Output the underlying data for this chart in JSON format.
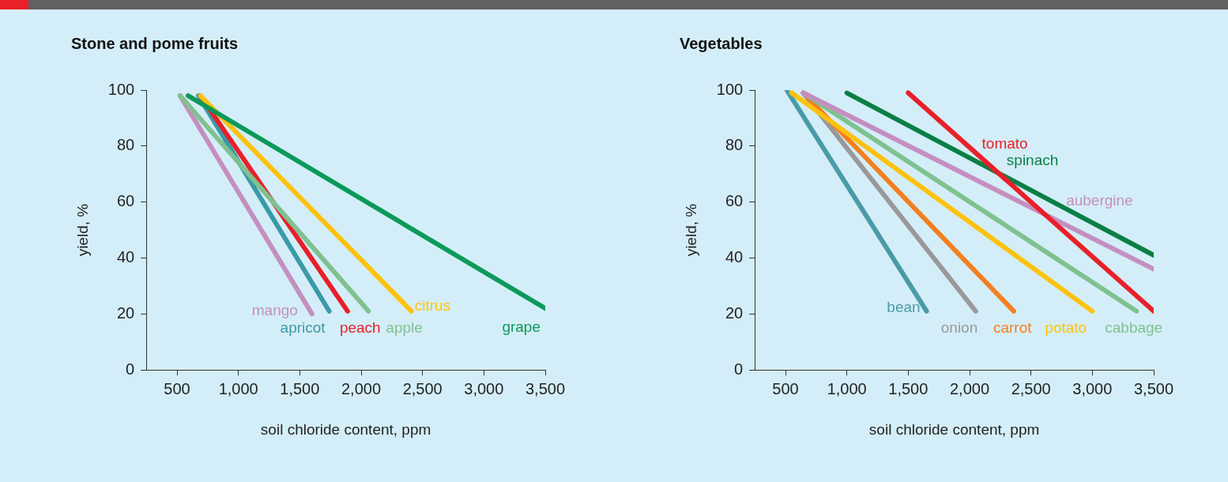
{
  "chart_data": [
    {
      "type": "line",
      "title": "Stone and pome fruits",
      "xlabel": "soil chloride content, ppm",
      "ylabel": "yield, %",
      "xlim": [
        250,
        3500
      ],
      "xticks": [
        {
          "value": 500,
          "label": "500"
        },
        {
          "value": 1000,
          "label": "1,000"
        },
        {
          "value": 1500,
          "label": "1,500"
        },
        {
          "value": 2000,
          "label": "2,000"
        },
        {
          "value": 2500,
          "label": "2,500"
        },
        {
          "value": 3000,
          "label": "3,000"
        },
        {
          "value": 3500,
          "label": "3,500"
        }
      ],
      "ylim": [
        0,
        100
      ],
      "yticks": [
        0,
        20,
        40,
        60,
        80,
        100
      ],
      "grid": false,
      "legend": false,
      "series": [
        {
          "name": "grape",
          "color": "#0a9a5a",
          "x": [
            590,
            3500
          ],
          "values": [
            98,
            22
          ]
        },
        {
          "name": "citrus",
          "color": "#ffc20e",
          "x": [
            690,
            2410
          ],
          "values": [
            98,
            21
          ]
        },
        {
          "name": "apple",
          "color": "#7fc18f",
          "x": [
            525,
            2060
          ],
          "values": [
            98,
            21
          ]
        },
        {
          "name": "peach",
          "color": "#e8202a",
          "x": [
            690,
            1890
          ],
          "values": [
            98,
            21
          ]
        },
        {
          "name": "apricot",
          "color": "#3a9aa8",
          "x": [
            675,
            1740
          ],
          "values": [
            98,
            21
          ]
        },
        {
          "name": "mango",
          "color": "#c48fbf",
          "x": [
            525,
            1600
          ],
          "values": [
            98,
            20
          ]
        }
      ]
    },
    {
      "type": "line",
      "title": "Vegetables",
      "xlabel": "soil chloride content, ppm",
      "ylabel": "yield, %",
      "xlim": [
        250,
        3500
      ],
      "xticks": [
        {
          "value": 500,
          "label": "500"
        },
        {
          "value": 1000,
          "label": "1,000"
        },
        {
          "value": 1500,
          "label": "1,500"
        },
        {
          "value": 2000,
          "label": "2,000"
        },
        {
          "value": 2500,
          "label": "2,500"
        },
        {
          "value": 3000,
          "label": "3,000"
        },
        {
          "value": 3500,
          "label": "3,500"
        }
      ],
      "ylim": [
        0,
        100
      ],
      "yticks": [
        0,
        20,
        40,
        60,
        80,
        100
      ],
      "grid": false,
      "legend": false,
      "series": [
        {
          "name": "tomato",
          "color": "#e8202a",
          "x": [
            1500,
            3500
          ],
          "values": [
            99,
            21
          ]
        },
        {
          "name": "spinach",
          "color": "#0a7f45",
          "x": [
            1000,
            3500
          ],
          "values": [
            99,
            41
          ]
        },
        {
          "name": "aubergine",
          "color": "#c48fbf",
          "x": [
            645,
            3500
          ],
          "values": [
            99,
            36
          ]
        },
        {
          "name": "cabbage",
          "color": "#7fc18f",
          "x": [
            645,
            3360
          ],
          "values": [
            99,
            21
          ]
        },
        {
          "name": "potato",
          "color": "#ffc20e",
          "x": [
            550,
            3000
          ],
          "values": [
            99,
            21
          ]
        },
        {
          "name": "carrot",
          "color": "#f47f20",
          "x": [
            645,
            2360
          ],
          "values": [
            99,
            21
          ]
        },
        {
          "name": "onion",
          "color": "#999999",
          "x": [
            645,
            2050
          ],
          "values": [
            99,
            21
          ]
        },
        {
          "name": "bean",
          "color": "#4a9ba8",
          "x": [
            510,
            1650
          ],
          "values": [
            100,
            21
          ]
        }
      ]
    }
  ]
}
